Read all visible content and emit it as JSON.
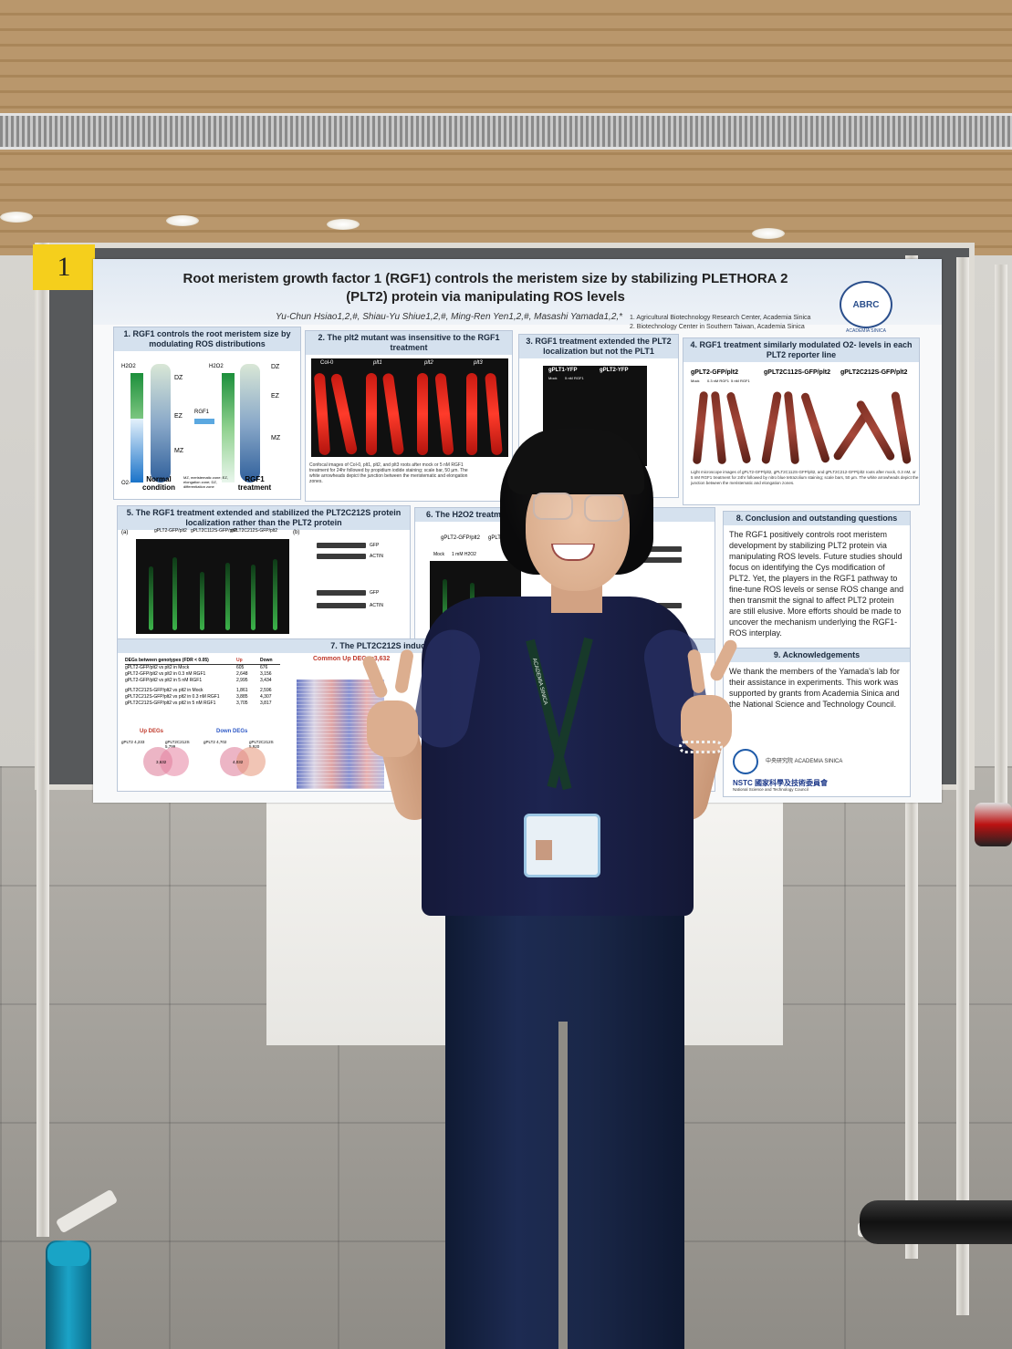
{
  "board": {
    "number": "1"
  },
  "poster": {
    "title_line1": "Root meristem growth factor 1 (RGF1) controls the meristem size by stabilizing PLETHORA 2",
    "title_line2": "(PLT2) protein via manipulating ROS levels",
    "authors": "Yu-Chun Hsiao1,2,#, Shiau-Yu Shiue1,2,#, Ming-Ren Yen1,2,#, Masashi Yamada1,2,*",
    "affiliation_1": "1. Agricultural Biotechnology Research Center, Academia Sinica",
    "affiliation_2": "2. Biotechnology Center in Southern Taiwan, Academia Sinica",
    "logo_text": "ABRC",
    "logo_caption": "ACADEMIA SINICA",
    "sections": {
      "s1": {
        "heading": "1. RGF1 controls the root meristem size by modulating ROS distributions",
        "labels": [
          "H2O2",
          "DZ",
          "EZ",
          "MZ",
          "O2-",
          "RGF1"
        ],
        "normal_condition": "Normal condition",
        "rgf1_treatment": "RGF1 treatment",
        "legend": "MZ, meristematic zone; EZ, elongation zone; DZ, differentiation zone"
      },
      "s2": {
        "heading": "2. The plt2 mutant was insensitive to the RGF1 treatment",
        "columns": [
          "Col-0",
          "plt1",
          "plt2",
          "plt3"
        ],
        "caption": "Confocal images of Col-0, plt1, plt2, and plt3 roots after mock or 5 nM RGF1 treatment for 24hr followed by propidium iodide staining; scale bar, 50 µm. The white arrowheads depict the junction between the meristematic and elongation zones."
      },
      "s3": {
        "heading": "3. RGF1 treatment extended the PLT2 localization but not the PLT1",
        "columns": [
          "gPLT1-YFP",
          "gPLT2-YFP"
        ],
        "sub": [
          "Mock",
          "5 nM RGF1"
        ]
      },
      "s4": {
        "heading": "4. RGF1 treatment similarly modulated O2- levels in each PLT2 reporter line",
        "columns": [
          "gPLT2-GFP/plt2",
          "gPLT2C112S-GFP/plt2",
          "gPLT2C212S-GFP/plt2"
        ],
        "sub": [
          "Mock",
          "0.3 nM RGF1",
          "5 nM RGF1"
        ],
        "caption": "Light microscope images of gPLT2-GFP/plt2, gPLT2C112S-GFP/plt2, and gPLT2C212-GFP/plt2 roots after mock, 0.3 nM, or 5 nM RGF1 treatment for 24hr followed by nitro blue tetrazolium staining; scale bars, 50 µm. The white arrowheads depict the junction between the meristematic and elongation zones."
      },
      "s5": {
        "heading": "5. The RGF1 treatment extended and stabilized the PLT2C212S protein localization rather than the PLT2 protein",
        "panel_a": "(a)",
        "panel_b": "(b)",
        "columns": [
          "gPLT2-GFP/plt2",
          "gPLT2C112S-GFP/plt2",
          "gPLT2C212S-GFP/plt2"
        ],
        "blot_labels": [
          "GFP",
          "ACTIN"
        ]
      },
      "s6": {
        "heading": "6. The H2O2 treatment ... compared ...",
        "columns": [
          "gPLT2-GFP/plt2",
          "gPLT2C..."
        ],
        "sub": [
          "Mock",
          "1 mM H2O2"
        ]
      },
      "s7": {
        "heading": "7. The PLT2C212S induced similar genes t...",
        "table_header": [
          "DEGs between genotypes (FDR < 0.05)",
          "Up",
          "Down"
        ],
        "rows": [
          [
            "gPLT2-GFP/plt2 vs plt2 in Mock",
            "605",
            "676"
          ],
          [
            "gPLT2-GFP/plt2 vs plt2 in 0.3 nM RGF1",
            "2,648",
            "3,156"
          ],
          [
            "gPLT2-GFP/plt2 vs plt2 in 5 nM RGF1",
            "2,995",
            "3,434"
          ],
          [
            "gPLT2C212S-GFP/plt2 vs plt2 in Mock",
            "1,861",
            "2,596"
          ],
          [
            "gPLT2C212S-GFP/plt2 vs plt2 in 0.3 nM RGF1",
            "3,885",
            "4,307"
          ],
          [
            "gPLT2C212S-GFP/plt2 vs plt2 in 5 nM RGF1",
            "3,705",
            "3,817"
          ]
        ],
        "common_up": "Common Up DEGs=3,632",
        "up_degs": "Up DEGs",
        "down_degs": "Down DEGs",
        "venn_up": [
          "gPLT2 4,233",
          "gPLT2C212S 5,799",
          "3,632"
        ],
        "venn_down": [
          "gPLT2 4,702",
          "gPLT2C212S 5,920",
          "4,032"
        ]
      },
      "s8": {
        "heading": "8. Conclusion and outstanding questions",
        "text": "The RGF1 positively controls root meristem development by stabilizing PLT2 protein via manipulating ROS levels. Future studies should focus on identifying the Cys modification of PLT2. Yet, the players in the RGF1 pathway to fine-tune ROS levels or sense ROS change and then transmit the signal to affect PLT2 protein are still elusive. More efforts should be made to uncover the mechanism underlying the RGF1-ROS interplay."
      },
      "s9": {
        "heading": "9. Acknowledgements",
        "text": "We thank the members of the Yamada's lab for their assistance in experiments. This work was supported by grants from Academia Sinica and the National Science and Technology Council.",
        "sponsor_1": "中央研究院 ACADEMIA SINICA",
        "sponsor_2": "NSTC 國家科學及技術委員會",
        "sponsor_2_sub": "National Science and Technology Council"
      }
    }
  },
  "lanyard_text": "ACADEMIA SINICA",
  "colors": {
    "poster_bg": "#f8f9fa",
    "section_header": "#d5e1ee",
    "number_tag": "#f5cf1c",
    "shirt": "#1d2450",
    "jeans": "#1d2b52"
  }
}
